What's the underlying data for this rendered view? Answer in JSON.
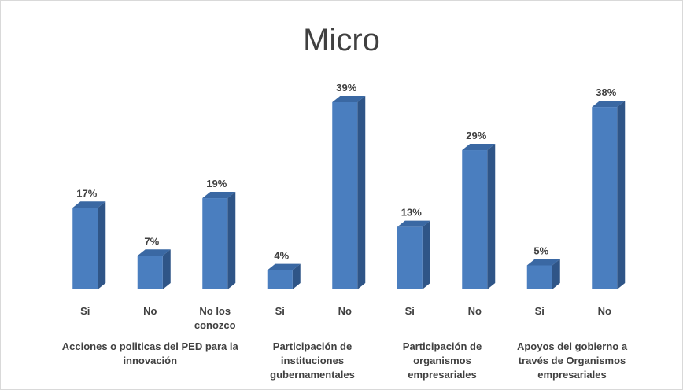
{
  "chart_data": {
    "type": "bar",
    "title": "Micro",
    "color": "#4a7ebf",
    "groups": [
      {
        "name": "Acciones o politicas del PED para la innovación",
        "categories": [
          "Si",
          "No",
          "No los conozco"
        ],
        "values": [
          17,
          7,
          19
        ],
        "value_labels": [
          "17%",
          "7%",
          "19%"
        ]
      },
      {
        "name": "Participación de instituciones gubernamentales",
        "categories": [
          "Si",
          "No"
        ],
        "values": [
          4,
          39
        ],
        "value_labels": [
          "4%",
          "39%"
        ]
      },
      {
        "name": "Participación de organismos empresariales",
        "categories": [
          "Si",
          "No"
        ],
        "values": [
          13,
          29
        ],
        "value_labels": [
          "13%",
          "29%"
        ]
      },
      {
        "name": "Apoyos del gobierno a través de Organismos empresariales",
        "categories": [
          "Si",
          "No"
        ],
        "values": [
          5,
          38
        ],
        "value_labels": [
          "5%",
          "38%"
        ]
      }
    ]
  }
}
